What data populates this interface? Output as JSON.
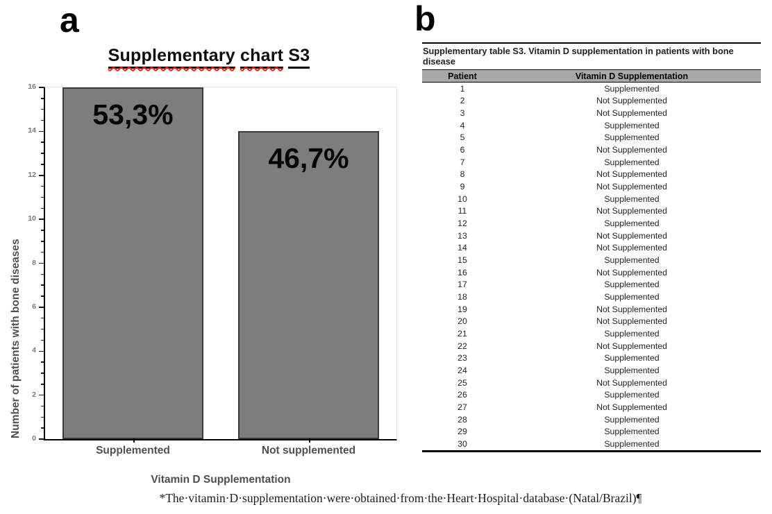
{
  "figure": {
    "panel_a_label": "a",
    "panel_b_label": "b",
    "footnote": "*The·vitamin·D·supplementation·were·obtained·from·the·Heart·Hospital·database·(Natal/Brazil)¶"
  },
  "chart_data": {
    "type": "bar",
    "title": "Supplementary chart S3",
    "title_parts": {
      "w1": "Supplementary",
      "w2": "chart",
      "w3": "S3"
    },
    "categories": [
      "Supplemented",
      "Not supplemented"
    ],
    "values": [
      16,
      14
    ],
    "bar_labels": [
      "53,3%",
      "46,7%"
    ],
    "xlabel": "Vitamin D Supplementation",
    "ylabel": "Number of patients with bone diseases",
    "ylim": [
      0,
      16
    ],
    "yticks": [
      0,
      2,
      4,
      6,
      8,
      10,
      12,
      14,
      16
    ],
    "ytick_step": 2,
    "minor_tick_step": 0.5,
    "grid": false,
    "legend": false,
    "bar_color": "#7d7d7d",
    "bar_border_color": "#3a3a3a"
  },
  "table": {
    "title": "Supplementary table S3. Vitamin D supplementation in patients with bone disease",
    "columns": [
      "Patient",
      "Vitamin D Supplementation"
    ],
    "header_bg": "#a8a8a8",
    "rows": [
      [
        "1",
        "Supplemented"
      ],
      [
        "2",
        "Not Supplemented"
      ],
      [
        "3",
        "Not Supplemented"
      ],
      [
        "4",
        "Supplemented"
      ],
      [
        "5",
        "Supplemented"
      ],
      [
        "6",
        "Not Supplemented"
      ],
      [
        "7",
        "Supplemented"
      ],
      [
        "8",
        "Not Supplemented"
      ],
      [
        "9",
        "Not Supplemented"
      ],
      [
        "10",
        "Supplemented"
      ],
      [
        "11",
        "Not Supplemented"
      ],
      [
        "12",
        "Supplemented"
      ],
      [
        "13",
        "Not Supplemented"
      ],
      [
        "14",
        "Not Supplemented"
      ],
      [
        "15",
        "Supplemented"
      ],
      [
        "16",
        "Not Supplemented"
      ],
      [
        "17",
        "Supplemented"
      ],
      [
        "18",
        "Supplemented"
      ],
      [
        "19",
        "Not Supplemented"
      ],
      [
        "20",
        "Not Supplemented"
      ],
      [
        "21",
        "Supplemented"
      ],
      [
        "22",
        "Not Supplemented"
      ],
      [
        "23",
        "Supplemented"
      ],
      [
        "24",
        "Supplemented"
      ],
      [
        "25",
        "Not Supplemented"
      ],
      [
        "26",
        "Supplemented"
      ],
      [
        "27",
        "Not Supplemented"
      ],
      [
        "28",
        "Supplemented"
      ],
      [
        "29",
        "Supplemented"
      ],
      [
        "30",
        "Supplemented"
      ]
    ]
  }
}
